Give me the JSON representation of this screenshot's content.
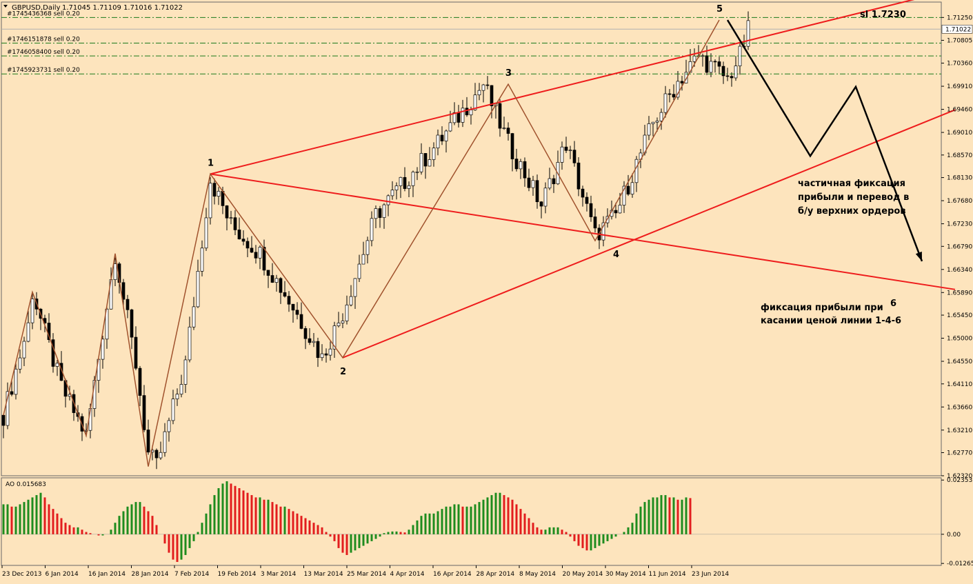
{
  "header": {
    "symbol": "GBPUSD,Daily",
    "ohlc": "1.71045 1.71109 1.71016 1.71022",
    "menu_icon": "triangle-down-icon"
  },
  "orders": [
    {
      "label": "#1745436368 sell 0.20",
      "price": 1.7125
    },
    {
      "label": "#1746151878 sell 0.20",
      "price": 1.7075
    },
    {
      "label": "#1746058400 sell 0.20",
      "price": 1.705
    },
    {
      "label": "#1745923731 sell 0.20",
      "price": 1.7015
    }
  ],
  "annotations": {
    "sl": "sl 1.7230",
    "note1": [
      "частичная фиксация",
      "прибыли и перевод в",
      "б/у верхних ордеров"
    ],
    "note2": [
      "фиксация прибыли при",
      "касании ценой линии 1-4-6"
    ],
    "wave_labels": [
      "1",
      "2",
      "3",
      "4",
      "5",
      "6"
    ]
  },
  "colors": {
    "background": "#fde4bd",
    "bull_candle_body": "#ffffff",
    "bear_candle_body": "#000000",
    "channel_line": "#ee1c1c",
    "zigzag": "#a0522d",
    "ao_up": "#1e8c1e",
    "ao_down": "#e21d1d",
    "current_price_label": "#ffffff"
  },
  "chart_data": {
    "type": "candlestick",
    "price_axis": {
      "ticks": [
        "1.71250",
        "1.70805",
        "1.70360",
        "1.69910",
        "1.69460",
        "1.69010",
        "1.68570",
        "1.68130",
        "1.67680",
        "1.67230",
        "1.66790",
        "1.66340",
        "1.65890",
        "1.65450",
        "1.65000",
        "1.64550",
        "1.64110",
        "1.63660",
        "1.63210",
        "1.62770",
        "1.62320"
      ],
      "range": [
        1.6232,
        1.7155
      ],
      "current_price": "1.71022"
    },
    "time_axis": {
      "labels": [
        "23 Dec 2013",
        "6 Jan 2014",
        "16 Jan 2014",
        "28 Jan 2014",
        "7 Feb 2014",
        "19 Feb 2014",
        "3 Mar 2014",
        "13 Mar 2014",
        "25 Mar 2014",
        "4 Apr 2014",
        "16 Apr 2014",
        "28 Apr 2014",
        "8 May 2014",
        "20 May 2014",
        "30 May 2014",
        "11 Jun 2014",
        "23 Jun 2014"
      ]
    },
    "close_path": [
      [
        0,
        1.635
      ],
      [
        6,
        1.6525
      ],
      [
        7,
        1.659
      ],
      [
        14,
        1.6405
      ],
      [
        20,
        1.631
      ],
      [
        27,
        1.6665
      ],
      [
        32,
        1.645
      ],
      [
        35,
        1.6275
      ],
      [
        37,
        1.625
      ],
      [
        44,
        1.645
      ],
      [
        50,
        1.681
      ],
      [
        55,
        1.672
      ],
      [
        62,
        1.6665
      ],
      [
        70,
        1.656
      ],
      [
        77,
        1.6462
      ],
      [
        82,
        1.655
      ],
      [
        90,
        1.674
      ],
      [
        98,
        1.6815
      ],
      [
        105,
        1.688
      ],
      [
        116,
        1.6995
      ],
      [
        122,
        1.688
      ],
      [
        130,
        1.676
      ],
      [
        136,
        1.688
      ],
      [
        143,
        1.67
      ],
      [
        148,
        1.674
      ],
      [
        152,
        1.682
      ],
      [
        157,
        1.692
      ],
      [
        163,
        1.7
      ],
      [
        168,
        1.705
      ],
      [
        175,
        1.7005
      ],
      [
        178,
        1.705
      ],
      [
        180,
        1.71
      ]
    ],
    "channel_lines": [
      {
        "from": [
          50,
          1.682
        ],
        "to": [
          230,
          1.718
        ]
      },
      {
        "from": [
          50,
          1.682
        ],
        "to": [
          230,
          1.6595
        ]
      },
      {
        "from": [
          82,
          1.6462
        ],
        "to": [
          230,
          1.6945
        ]
      }
    ],
    "zigzag": [
      [
        0,
        1.635
      ],
      [
        7,
        1.659
      ],
      [
        20,
        1.631
      ],
      [
        27,
        1.6665
      ],
      [
        35,
        1.625
      ],
      [
        50,
        1.682
      ],
      [
        82,
        1.6462
      ],
      [
        122,
        1.6995
      ],
      [
        143,
        1.669
      ],
      [
        173,
        1.712
      ]
    ],
    "wave_points": [
      {
        "label": "1",
        "bar": 50,
        "price": 1.682
      },
      {
        "label": "2",
        "bar": 82,
        "price": 1.6462
      },
      {
        "label": "3",
        "bar": 122,
        "price": 1.6995
      },
      {
        "label": "4",
        "bar": 148,
        "price": 1.669
      },
      {
        "label": "5",
        "bar": 173,
        "price": 1.712
      },
      {
        "label": "6",
        "bar": 215,
        "price": 1.6595
      }
    ],
    "forecast_path": [
      [
        175,
        1.712
      ],
      [
        195,
        1.6855
      ],
      [
        206,
        1.699
      ],
      [
        222,
        1.665
      ]
    ],
    "ao": {
      "label": "AO 0.015683",
      "ticks": [
        "0.02353",
        "0.00",
        "-0.012652"
      ],
      "range": [
        -0.0135,
        0.0245
      ],
      "values": [
        0.013,
        0.013,
        0.012,
        0.012,
        0.013,
        0.014,
        0.015,
        0.016,
        0.017,
        0.018,
        0.016,
        0.013,
        0.011,
        0.009,
        0.007,
        0.005,
        0.004,
        0.003,
        0.003,
        0.002,
        0.001,
        0.0005,
        0.0,
        -0.0005,
        -0.0005,
        0.0,
        0.002,
        0.005,
        0.008,
        0.01,
        0.012,
        0.013,
        0.014,
        0.014,
        0.012,
        0.01,
        0.008,
        0.004,
        0.0,
        -0.004,
        -0.008,
        -0.011,
        -0.012,
        -0.011,
        -0.009,
        -0.006,
        -0.003,
        0.001,
        0.005,
        0.009,
        0.013,
        0.017,
        0.02,
        0.022,
        0.023,
        0.022,
        0.021,
        0.02,
        0.019,
        0.018,
        0.017,
        0.016,
        0.016,
        0.015,
        0.015,
        0.014,
        0.013,
        0.012,
        0.012,
        0.011,
        0.01,
        0.009,
        0.008,
        0.007,
        0.006,
        0.005,
        0.004,
        0.003,
        0.001,
        -0.001,
        -0.003,
        -0.006,
        -0.008,
        -0.009,
        -0.008,
        -0.007,
        -0.006,
        -0.005,
        -0.004,
        -0.003,
        -0.002,
        -0.001,
        0.0005,
        0.001,
        0.0012,
        0.0012,
        0.001,
        0.0008,
        0.002,
        0.004,
        0.006,
        0.008,
        0.009,
        0.009,
        0.009,
        0.01,
        0.011,
        0.012,
        0.012,
        0.013,
        0.013,
        0.012,
        0.012,
        0.012,
        0.013,
        0.014,
        0.015,
        0.016,
        0.017,
        0.018,
        0.018,
        0.017,
        0.016,
        0.015,
        0.013,
        0.011,
        0.009,
        0.007,
        0.005,
        0.003,
        0.002,
        0.002,
        0.003,
        0.003,
        0.003,
        0.002,
        0.001,
        -0.001,
        -0.003,
        -0.005,
        -0.006,
        -0.007,
        -0.007,
        -0.006,
        -0.005,
        -0.004,
        -0.003,
        -0.002,
        -0.001,
        0.0,
        0.001,
        0.003,
        0.005,
        0.009,
        0.012,
        0.014,
        0.015,
        0.016,
        0.016,
        0.017,
        0.017,
        0.016,
        0.016,
        0.015,
        0.015,
        0.016,
        0.0157
      ]
    }
  }
}
